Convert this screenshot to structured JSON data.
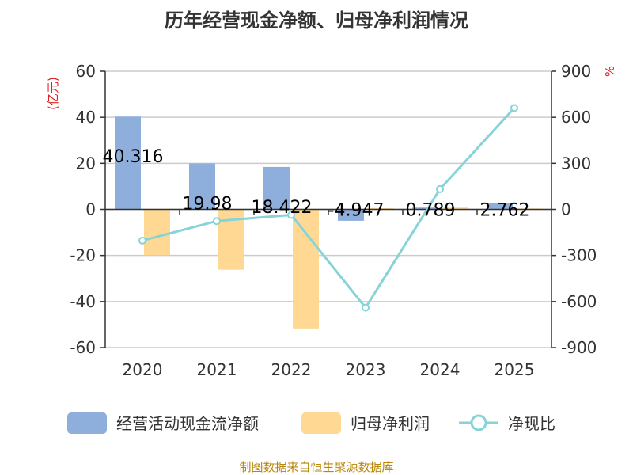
{
  "chart_data": {
    "type": "bar",
    "title": "历年经营现金净额、归母净利润情况",
    "categories": [
      "2020",
      "2021",
      "2022",
      "2023",
      "2024",
      "2025"
    ],
    "y_left": {
      "unit": "(亿元)",
      "ylim": [
        -60,
        60
      ],
      "ticks": [
        "60",
        "40",
        "20",
        "0",
        "-20",
        "-40",
        "-60"
      ]
    },
    "y_right": {
      "unit": "%",
      "ylim": [
        -900,
        900
      ],
      "ticks": [
        "900",
        "600",
        "300",
        "0",
        "-300",
        "-600",
        "-900"
      ]
    },
    "series": [
      {
        "name": "经营活动现金流净额",
        "type": "bar",
        "axis": "left",
        "color": "#8eaedb",
        "values": [
          40.316,
          19.98,
          18.422,
          -4.947,
          0.789,
          2.762
        ],
        "labels": [
          "40.316",
          "19.98",
          "18.422",
          "-4.947",
          "0.789",
          "2.762"
        ]
      },
      {
        "name": "归母净利润",
        "type": "bar",
        "axis": "left",
        "color": "#ffd994",
        "values": [
          -19.8,
          -26.2,
          -51.7,
          0.5,
          0.8,
          0.4
        ]
      },
      {
        "name": "净现比",
        "type": "line",
        "axis": "right",
        "color": "#88d3d8",
        "values": [
          -203,
          -76,
          -36,
          -640,
          132,
          661
        ]
      }
    ],
    "grid": true,
    "legend_position": "bottom"
  },
  "footer": {
    "source": "制图数据来自恒生聚源数据库"
  },
  "colors": {
    "axis": "#333333",
    "grid": "#cccccc"
  }
}
